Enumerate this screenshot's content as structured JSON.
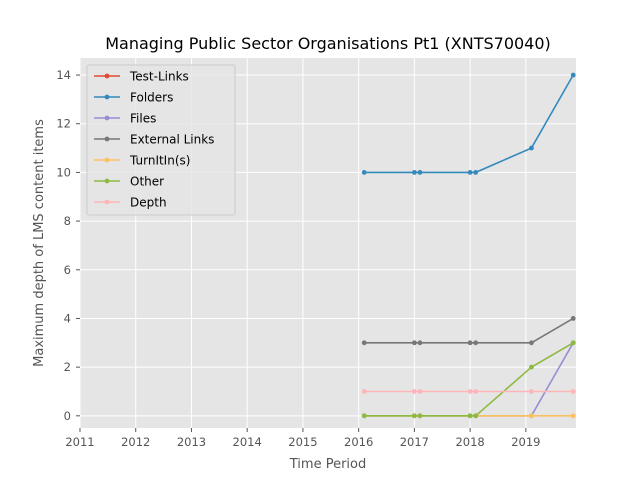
{
  "chart_data": {
    "type": "line",
    "title": "Managing Public Sector Organisations Pt1 (XNTS70040)",
    "xlabel": "Time Period",
    "ylabel": "Maximum depth of LMS content items",
    "xlim": [
      2011,
      2019.9
    ],
    "ylim": [
      -0.5,
      14.7
    ],
    "xticks": [
      "2011",
      "2012",
      "2013",
      "2014",
      "2015",
      "2016",
      "2017",
      "2018",
      "2019"
    ],
    "yticks": [
      "0",
      "2",
      "4",
      "6",
      "8",
      "10",
      "12",
      "14"
    ],
    "grid": true,
    "legend_position": "upper-left",
    "x": [
      2016.1,
      2017.0,
      2017.1,
      2018.0,
      2018.1,
      2019.1,
      2019.85
    ],
    "series": [
      {
        "name": "Test-Links",
        "color": "#E24A33",
        "values": [
          null,
          null,
          null,
          null,
          null,
          null,
          null
        ]
      },
      {
        "name": "Folders",
        "color": "#348ABD",
        "values": [
          10,
          10,
          10,
          10,
          10,
          11,
          14
        ]
      },
      {
        "name": "Files",
        "color": "#988ED5",
        "values": [
          0,
          0,
          0,
          0,
          0,
          0,
          3
        ]
      },
      {
        "name": "External Links",
        "color": "#777777",
        "values": [
          3,
          3,
          3,
          3,
          3,
          3,
          4
        ]
      },
      {
        "name": "TurnItIn(s)",
        "color": "#FBC15E",
        "values": [
          0,
          0,
          0,
          0,
          0,
          0,
          0
        ]
      },
      {
        "name": "Other",
        "color": "#8EBA42",
        "values": [
          0,
          0,
          0,
          0,
          0,
          2,
          3
        ]
      },
      {
        "name": "Depth",
        "color": "#FFB5B8",
        "values": [
          1,
          1,
          1,
          1,
          1,
          1,
          1
        ]
      }
    ]
  }
}
